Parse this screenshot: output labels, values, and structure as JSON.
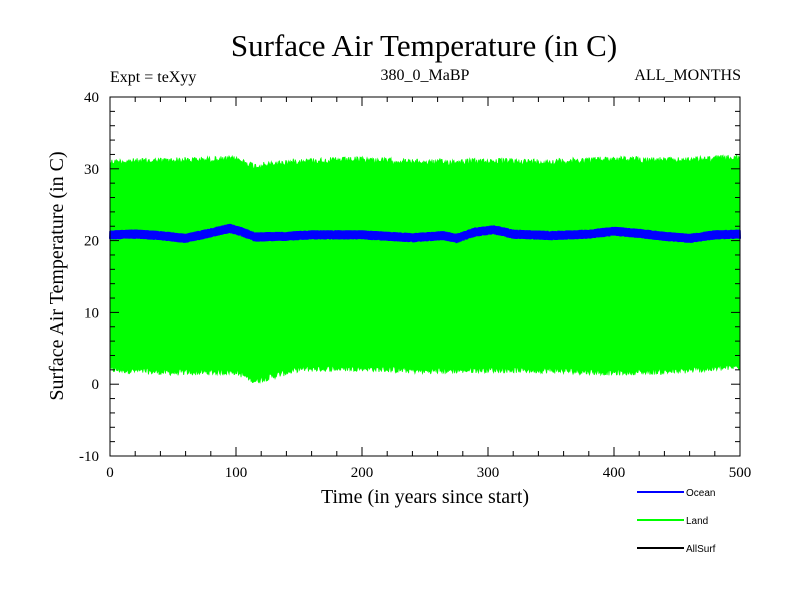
{
  "chart_data": {
    "type": "line",
    "title": "Surface Air Temperature (in C)",
    "subtitle_left": "Expt = teXyy",
    "subtitle_center": "380_0_MaBP",
    "subtitle_right": "ALL_MONTHS",
    "xlabel": "Time (in years since start)",
    "ylabel": "Surface Air Temperature (in C)",
    "xlim": [
      0,
      500
    ],
    "ylim": [
      -10,
      40
    ],
    "xticks": [
      0,
      100,
      200,
      300,
      400,
      500
    ],
    "yticks": [
      -10,
      0,
      10,
      20,
      30,
      40
    ],
    "grid": false,
    "legend_position": "bottom-right",
    "series": [
      {
        "name": "Ocean",
        "color": "#0000ff",
        "x": [
          0,
          20,
          40,
          60,
          80,
          95,
          105,
          115,
          140,
          160,
          200,
          240,
          265,
          275,
          290,
          305,
          320,
          350,
          380,
          400,
          420,
          440,
          460,
          480,
          500
        ],
        "y_center": [
          20.8,
          20.9,
          20.7,
          20.3,
          21.1,
          21.7,
          21.2,
          20.5,
          20.6,
          20.8,
          20.8,
          20.4,
          20.7,
          20.3,
          21.2,
          21.5,
          20.9,
          20.7,
          20.9,
          21.3,
          21.0,
          20.6,
          20.3,
          20.8,
          20.9
        ],
        "y_range": [
          19.8,
          22.5
        ]
      },
      {
        "name": "Land",
        "color": "#00ff00",
        "x": [
          0,
          50,
          100,
          115,
          150,
          200,
          250,
          300,
          350,
          400,
          450,
          500
        ],
        "y_max": [
          31.4,
          31.6,
          31.8,
          30.8,
          31.5,
          31.7,
          31.3,
          31.5,
          31.4,
          31.8,
          31.6,
          32.0
        ],
        "y_min": [
          1.6,
          1.2,
          1.3,
          0.0,
          1.7,
          1.8,
          1.4,
          1.6,
          1.5,
          1.2,
          1.4,
          2.0
        ]
      },
      {
        "name": "AllSurf",
        "color": "#000000",
        "x": [],
        "y": []
      }
    ]
  }
}
